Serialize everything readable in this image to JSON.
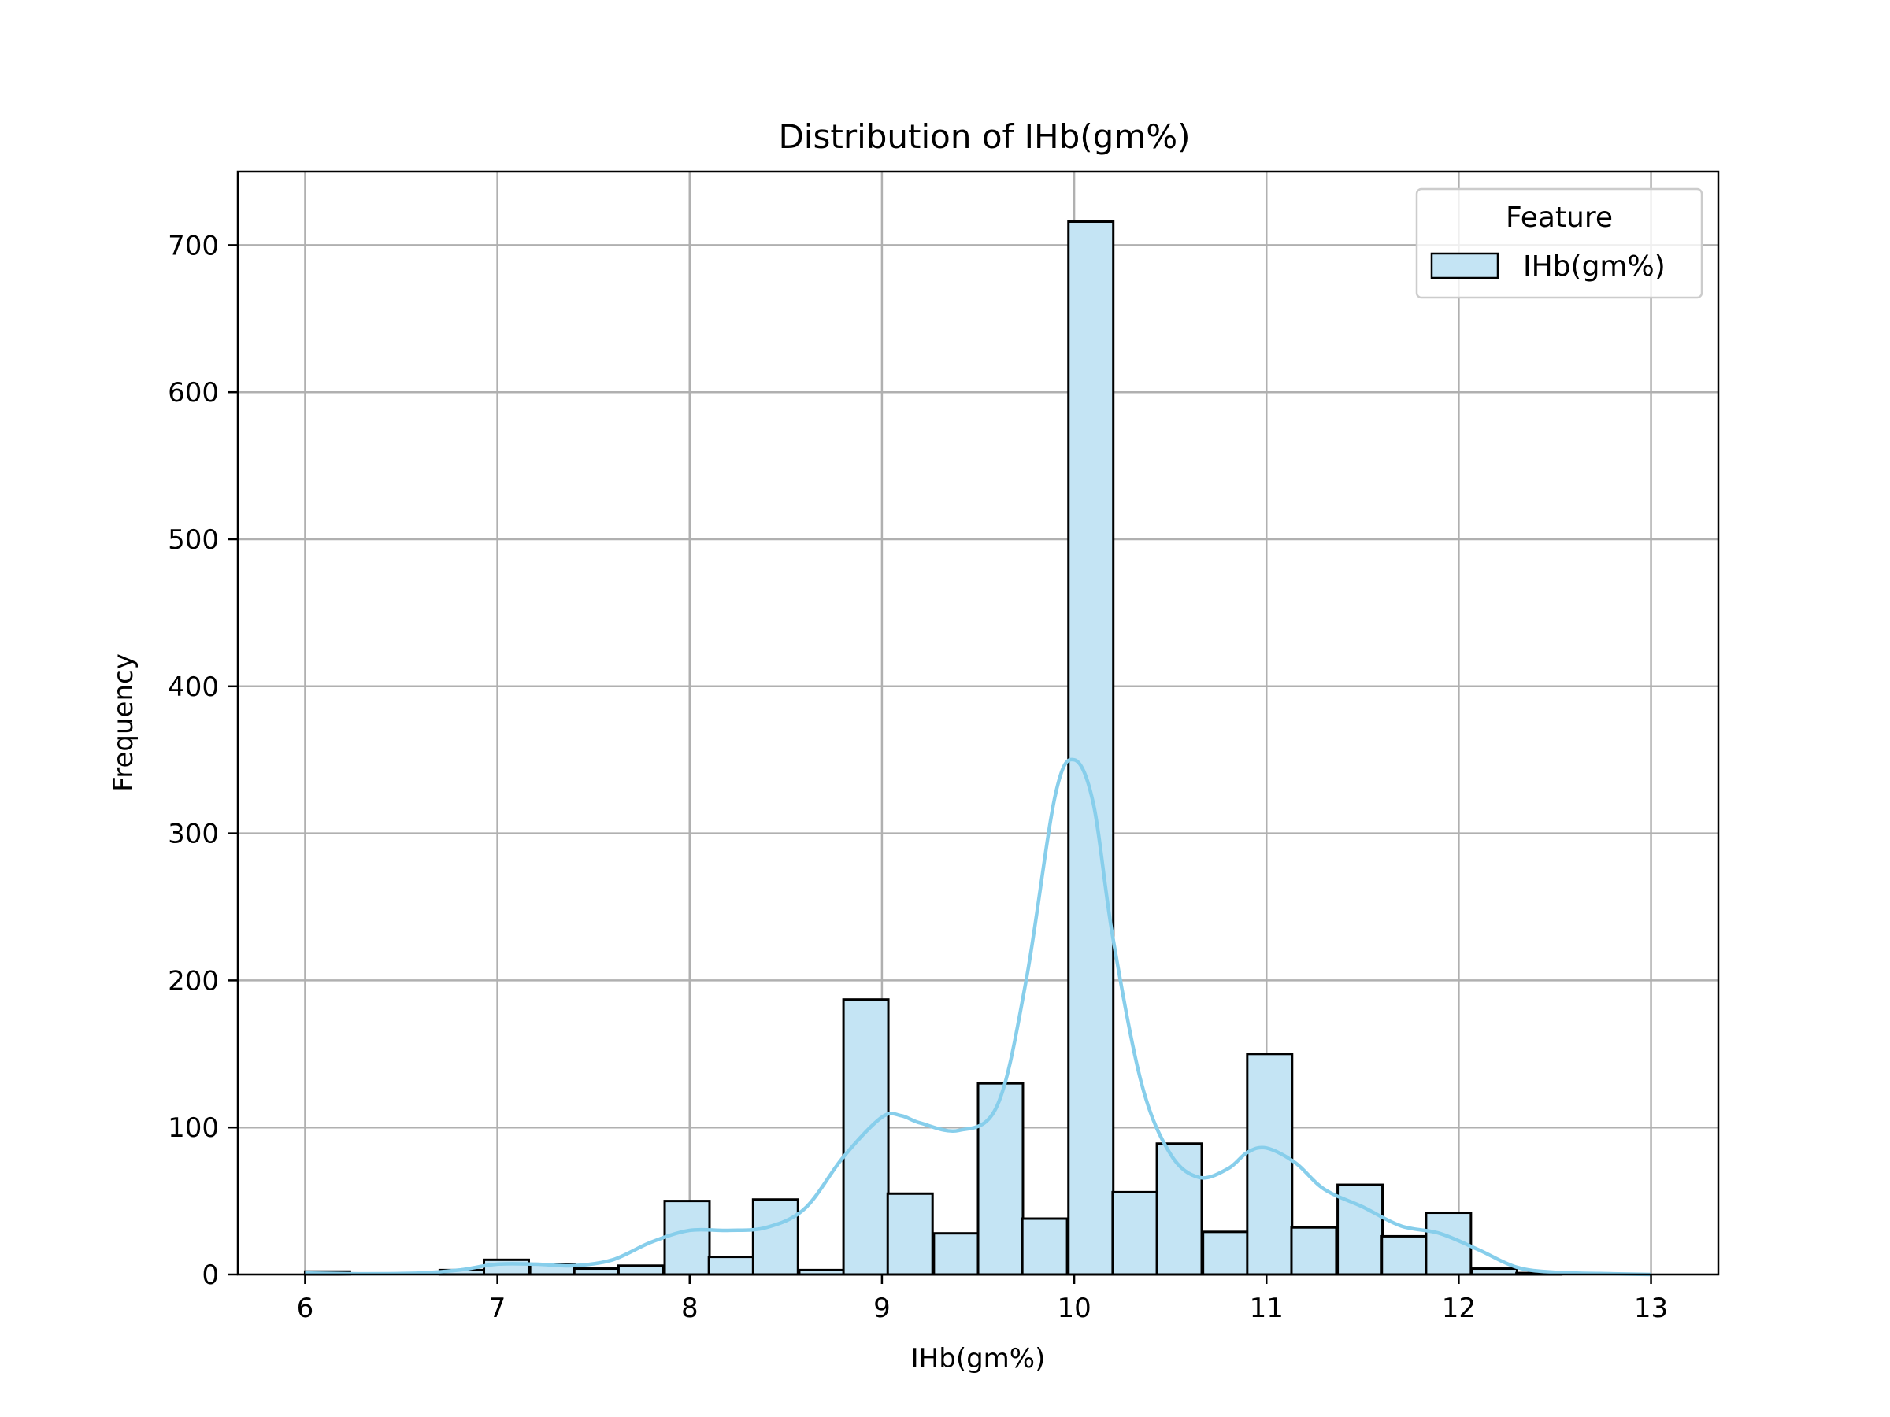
{
  "chart_data": {
    "type": "bar",
    "title": "Distribution of IHb(gm%)",
    "xlabel": "IHb(gm%)",
    "ylabel": "Frequency",
    "xlim": [
      5.65,
      13.35
    ],
    "ylim": [
      0,
      750
    ],
    "xticks": [
      "6",
      "7",
      "8",
      "9",
      "10",
      "11",
      "12",
      "13"
    ],
    "yticks": [
      "0",
      "100",
      "200",
      "300",
      "400",
      "500",
      "600",
      "700"
    ],
    "grid": true,
    "legend": {
      "title": "Feature",
      "placement": "top-right",
      "entries": [
        "IHb(gm%)"
      ]
    },
    "colors": {
      "bar_fill": "#c4e4f4",
      "bar_edge": "#000000",
      "kde_line": "#87ceeb",
      "grid": "#b0b0b0"
    },
    "bin_width": 0.2333,
    "bins": [
      {
        "x0": 6.0,
        "count": 2
      },
      {
        "x0": 6.23,
        "count": 0
      },
      {
        "x0": 6.47,
        "count": 0
      },
      {
        "x0": 6.7,
        "count": 3
      },
      {
        "x0": 6.93,
        "count": 10
      },
      {
        "x0": 7.17,
        "count": 7
      },
      {
        "x0": 7.4,
        "count": 4
      },
      {
        "x0": 7.63,
        "count": 6
      },
      {
        "x0": 7.87,
        "count": 50
      },
      {
        "x0": 8.1,
        "count": 12
      },
      {
        "x0": 8.33,
        "count": 51
      },
      {
        "x0": 8.57,
        "count": 3
      },
      {
        "x0": 8.8,
        "count": 187
      },
      {
        "x0": 9.03,
        "count": 55
      },
      {
        "x0": 9.27,
        "count": 28
      },
      {
        "x0": 9.5,
        "count": 130
      },
      {
        "x0": 9.73,
        "count": 38
      },
      {
        "x0": 9.97,
        "count": 716
      },
      {
        "x0": 10.2,
        "count": 56
      },
      {
        "x0": 10.43,
        "count": 89
      },
      {
        "x0": 10.67,
        "count": 29
      },
      {
        "x0": 10.9,
        "count": 150
      },
      {
        "x0": 11.13,
        "count": 32
      },
      {
        "x0": 11.37,
        "count": 61
      },
      {
        "x0": 11.6,
        "count": 26
      },
      {
        "x0": 11.83,
        "count": 42
      },
      {
        "x0": 12.07,
        "count": 4
      },
      {
        "x0": 12.3,
        "count": 1
      }
    ],
    "kde": [
      [
        6.0,
        1
      ],
      [
        6.3,
        0.5
      ],
      [
        6.6,
        1
      ],
      [
        6.8,
        3
      ],
      [
        7.0,
        7
      ],
      [
        7.2,
        7
      ],
      [
        7.4,
        6
      ],
      [
        7.6,
        10
      ],
      [
        7.8,
        22
      ],
      [
        8.0,
        30
      ],
      [
        8.2,
        30
      ],
      [
        8.4,
        32
      ],
      [
        8.6,
        45
      ],
      [
        8.8,
        80
      ],
      [
        9.0,
        107
      ],
      [
        9.1,
        108
      ],
      [
        9.2,
        103
      ],
      [
        9.4,
        98
      ],
      [
        9.6,
        115
      ],
      [
        9.75,
        200
      ],
      [
        9.9,
        325
      ],
      [
        10.0,
        350
      ],
      [
        10.1,
        320
      ],
      [
        10.2,
        230
      ],
      [
        10.35,
        130
      ],
      [
        10.5,
        82
      ],
      [
        10.65,
        66
      ],
      [
        10.8,
        72
      ],
      [
        10.9,
        83
      ],
      [
        11.0,
        86
      ],
      [
        11.15,
        76
      ],
      [
        11.3,
        58
      ],
      [
        11.5,
        46
      ],
      [
        11.7,
        33
      ],
      [
        11.9,
        28
      ],
      [
        12.1,
        17
      ],
      [
        12.3,
        5
      ],
      [
        12.5,
        1.5
      ],
      [
        12.8,
        0.5
      ],
      [
        13.0,
        0
      ]
    ]
  }
}
